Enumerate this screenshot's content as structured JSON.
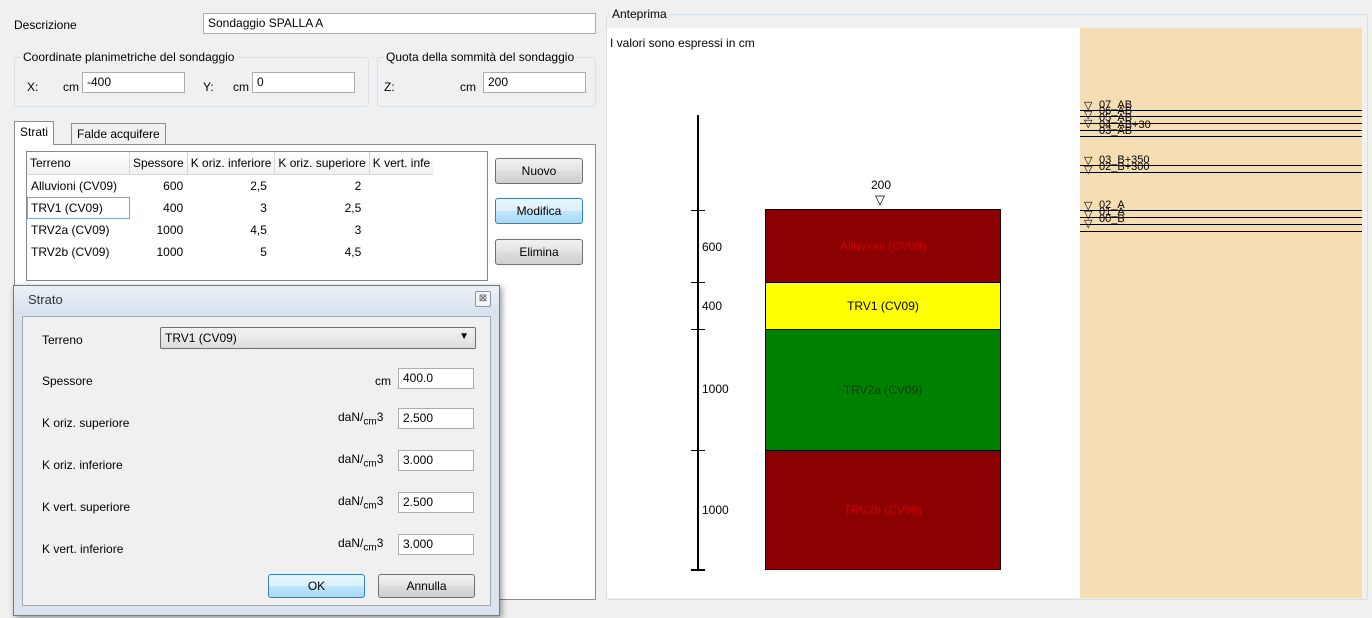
{
  "form": {
    "descrizione_label": "Descrizione",
    "descrizione_value": "Sondaggio SPALLA A",
    "coord_group_label": "Coordinate planimetriche del sondaggio",
    "x_label": "X:",
    "x_unit": "cm",
    "x_value": "-400",
    "y_label": "Y:",
    "y_unit": "cm",
    "y_value": "0",
    "quota_group_label": "Quota della sommità del sondaggio",
    "z_label": "Z:",
    "z_unit": "cm",
    "z_value": "200"
  },
  "tabs": [
    {
      "label": "Strati",
      "selected": true
    },
    {
      "label": "Falde acquifere",
      "selected": false
    }
  ],
  "table": {
    "columns": [
      "Terreno",
      "Spessore",
      "K oriz. inferiore",
      "K oriz. superiore",
      "K vert. infe"
    ],
    "rows": [
      [
        "Alluvioni (CV09)",
        "600",
        "2,5",
        "2"
      ],
      [
        "TRV1 (CV09)",
        "400",
        "3",
        "2,5"
      ],
      [
        "TRV2a (CV09)",
        "1000",
        "4,5",
        "3"
      ],
      [
        "TRV2b (CV09)",
        "1000",
        "5",
        "4,5"
      ]
    ]
  },
  "buttons": {
    "nuovo": "Nuovo",
    "modifica": "Modifica",
    "elimina": "Elimina"
  },
  "dialog": {
    "title": "Strato",
    "terreno_label": "Terreno",
    "terreno_value": "TRV1 (CV09)",
    "spessore_label": "Spessore",
    "spessore_unit": "cm",
    "spessore_value": "400.0",
    "unit_prefix": "daN/",
    "unit_sub": "cm",
    "unit_sup": "3",
    "k_oriz_sup_label": "K oriz. superiore",
    "k_oriz_sup_value": "2.500",
    "k_oriz_inf_label": "K oriz. inferiore",
    "k_oriz_inf_value": "3.000",
    "k_vert_sup_label": "K vert. superiore",
    "k_vert_sup_value": "2.500",
    "k_vert_inf_label": "K vert. inferiore",
    "k_vert_inf_value": "3.000",
    "ok": "OK",
    "annulla": "Annulla"
  },
  "preview": {
    "group_label": "Anteprima",
    "note": "I valori sono espressi in cm",
    "top_value": "200",
    "layers": [
      {
        "name": "Alluvioni (CV09)",
        "thickness": "600",
        "color": "#8b0000",
        "text_color": "#d00000"
      },
      {
        "name": "TRV1 (CV09)",
        "thickness": "400",
        "color": "#ffff00",
        "text_color": "#000000"
      },
      {
        "name": "TRV2a (CV09)",
        "thickness": "1000",
        "color": "#008000",
        "text_color": "#004000"
      },
      {
        "name": "TRV2b (CV09)",
        "thickness": "1000",
        "color": "#8b0000",
        "text_color": "#d00000"
      }
    ],
    "water_panel_color": "#f5deb3",
    "water_labels": [
      "07_AB",
      "06_AB",
      "05_AB",
      "04_AB+30",
      "03_AB",
      "03_B+350",
      "02_B+300",
      "02_A",
      "01_A",
      "00_B"
    ]
  }
}
